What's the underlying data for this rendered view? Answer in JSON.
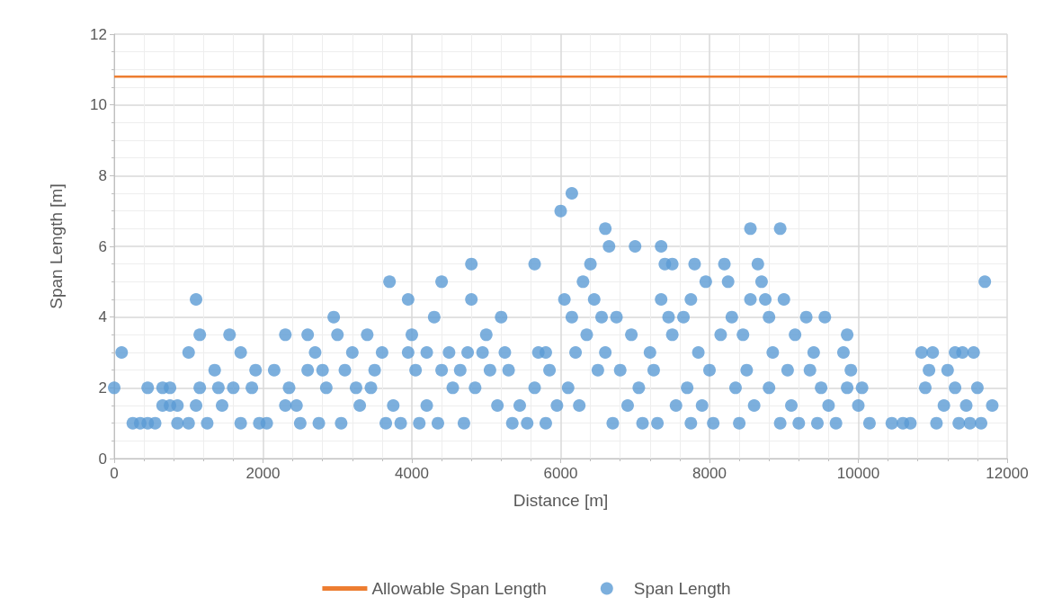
{
  "chart_data": {
    "type": "scatter",
    "xlabel": "Distance [m]",
    "ylabel": "Span Length [m]",
    "xlim": [
      0,
      12000
    ],
    "xticks": [
      0,
      2000,
      4000,
      6000,
      8000,
      10000,
      12000
    ],
    "ylim": [
      0,
      12
    ],
    "yticks": [
      0,
      2,
      4,
      6,
      8,
      10,
      12
    ],
    "grid": true,
    "legend": "bottom",
    "marker": "circle",
    "series": [
      {
        "name": "Allowable Span Length",
        "type": "line",
        "marker": "none",
        "color": "#ed7d31",
        "x": [
          0,
          12000
        ],
        "values": [
          10.8,
          10.8
        ]
      },
      {
        "name": "Span Length",
        "color": "#5b9bd5",
        "x": [
          0,
          100,
          250,
          350,
          450,
          450,
          550,
          650,
          650,
          750,
          750,
          850,
          850,
          1000,
          1000,
          1100,
          1100,
          1150,
          1150,
          1250,
          1350,
          1400,
          1450,
          1550,
          1600,
          1700,
          1700,
          1850,
          1900,
          1950,
          2050,
          2150,
          2300,
          2300,
          2350,
          2450,
          2500,
          2600,
          2600,
          2700,
          2750,
          2800,
          2850,
          2950,
          3000,
          3050,
          3100,
          3200,
          3250,
          3300,
          3400,
          3450,
          3500,
          3600,
          3650,
          3700,
          3750,
          3850,
          3950,
          3950,
          4000,
          4050,
          4100,
          4200,
          4200,
          4300,
          4350,
          4400,
          4400,
          4500,
          4550,
          4650,
          4700,
          4750,
          4800,
          4800,
          4850,
          4950,
          5000,
          5050,
          5150,
          5200,
          5250,
          5300,
          5350,
          5450,
          5550,
          5650,
          5650,
          5700,
          5800,
          5800,
          5850,
          5950,
          6000,
          6050,
          6100,
          6150,
          6150,
          6200,
          6250,
          6300,
          6350,
          6400,
          6450,
          6500,
          6550,
          6600,
          6600,
          6650,
          6700,
          6750,
          6800,
          6900,
          6950,
          7000,
          7050,
          7100,
          7200,
          7250,
          7300,
          7350,
          7350,
          7400,
          7450,
          7500,
          7500,
          7550,
          7650,
          7700,
          7750,
          7750,
          7800,
          7850,
          7900,
          7950,
          8000,
          8050,
          8150,
          8200,
          8250,
          8300,
          8350,
          8400,
          8450,
          8500,
          8550,
          8550,
          8600,
          8650,
          8700,
          8750,
          8800,
          8800,
          8850,
          8950,
          8950,
          9000,
          9050,
          9100,
          9150,
          9200,
          9300,
          9350,
          9400,
          9450,
          9500,
          9550,
          9600,
          9700,
          9800,
          9850,
          9850,
          9900,
          10000,
          10050,
          10150,
          10450,
          10600,
          10700,
          10850,
          10900,
          10950,
          11000,
          11050,
          11150,
          11200,
          11300,
          11300,
          11350,
          11400,
          11450,
          11500,
          11550,
          11600,
          11650,
          11700,
          11800
        ],
        "values": [
          2,
          3,
          1,
          1,
          1,
          2,
          1,
          1.5,
          2,
          2,
          1.5,
          1.5,
          1,
          3,
          1,
          1.5,
          4.5,
          2,
          3.5,
          1,
          2.5,
          2,
          1.5,
          3.5,
          2,
          3,
          1,
          2,
          2.5,
          1,
          1,
          2.5,
          3.5,
          1.5,
          2,
          1.5,
          1,
          3.5,
          2.5,
          3,
          1,
          2.5,
          2,
          4,
          3.5,
          1,
          2.5,
          3,
          2,
          1.5,
          3.5,
          2,
          2.5,
          3,
          1,
          5,
          1.5,
          1,
          3,
          4.5,
          3.5,
          2.5,
          1,
          3,
          1.5,
          4,
          1,
          5,
          2.5,
          3,
          2,
          2.5,
          1,
          3,
          5.5,
          4.5,
          2,
          3,
          3.5,
          2.5,
          1.5,
          4,
          3,
          2.5,
          1,
          1.5,
          1,
          5.5,
          2,
          3,
          3,
          1,
          2.5,
          1.5,
          7,
          4.5,
          2,
          7.5,
          4,
          3,
          1.5,
          5,
          3.5,
          5.5,
          4.5,
          2.5,
          4,
          6.5,
          3,
          6,
          1,
          4,
          2.5,
          1.5,
          3.5,
          6,
          2,
          1,
          3,
          2.5,
          1,
          6,
          4.5,
          5.5,
          4,
          3.5,
          5.5,
          1.5,
          4,
          2,
          4.5,
          1,
          5.5,
          3,
          1.5,
          5,
          2.5,
          1,
          3.5,
          5.5,
          5,
          4,
          2,
          1,
          3.5,
          2.5,
          6.5,
          4.5,
          1.5,
          5.5,
          5,
          4.5,
          4,
          2,
          3,
          6.5,
          1,
          4.5,
          2.5,
          1.5,
          3.5,
          1,
          4,
          2.5,
          3,
          1,
          2,
          4,
          1.5,
          1,
          3,
          3.5,
          2,
          2.5,
          1.5,
          2,
          1,
          1,
          1,
          1,
          3,
          2,
          2.5,
          3,
          1,
          1.5,
          2.5,
          3,
          2,
          1,
          3,
          1.5,
          1,
          3,
          2,
          1,
          5,
          1.5
        ]
      }
    ]
  }
}
